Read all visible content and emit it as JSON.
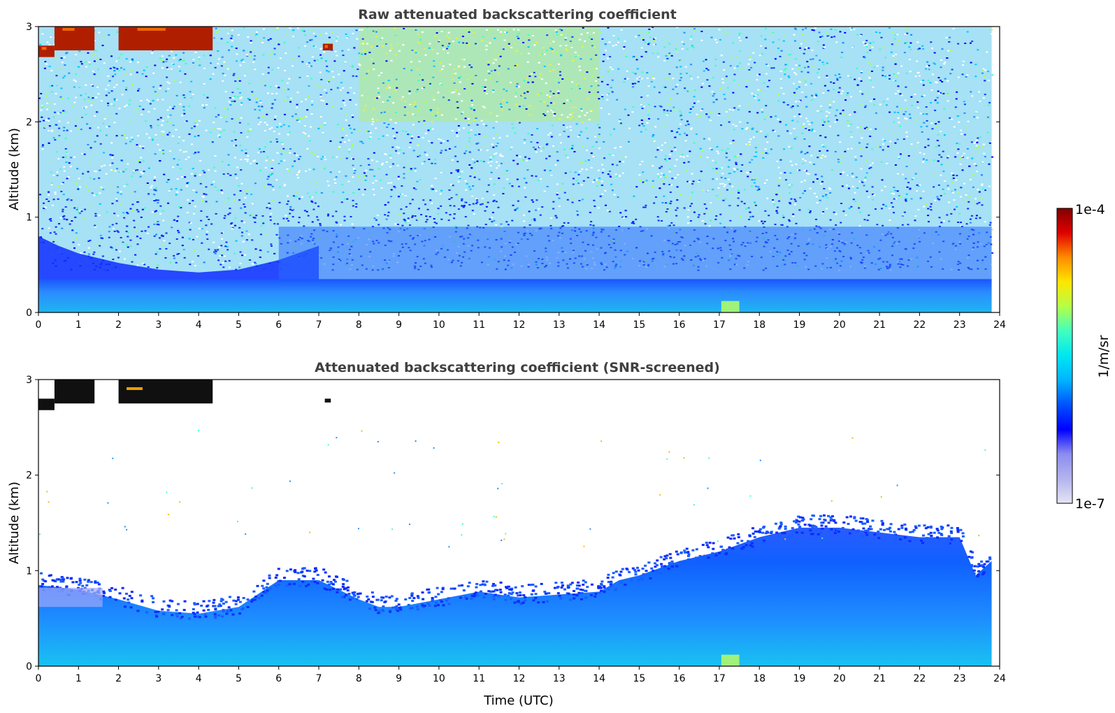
{
  "chart_data": [
    {
      "type": "heatmap",
      "title": "Raw attenuated backscattering coefficient",
      "xlabel": "",
      "ylabel": "Altitude (km)",
      "xlim": [
        0,
        24
      ],
      "ylim": [
        0,
        3
      ],
      "xticks": [
        "0",
        "1",
        "2",
        "3",
        "4",
        "5",
        "6",
        "7",
        "8",
        "9",
        "10",
        "11",
        "12",
        "13",
        "14",
        "15",
        "16",
        "17",
        "18",
        "19",
        "20",
        "21",
        "22",
        "23",
        "24"
      ],
      "yticks": [
        "0",
        "1",
        "2",
        "3"
      ],
      "data_end_time": 23.8,
      "layers": [
        {
          "name": "surface-layer",
          "x": [
            0,
            23.8
          ],
          "y": [
            0,
            0.35
          ],
          "level": "cyan-blue"
        },
        {
          "name": "boundary-layer-morning",
          "x": [
            0,
            6
          ],
          "y": [
            0.35,
            0.8
          ],
          "level": "dark-blue"
        },
        {
          "name": "noisy-upper-region",
          "x": [
            0,
            23.8
          ],
          "y": [
            0.8,
            3.0
          ],
          "level": "noisy-green-blue"
        },
        {
          "name": "noise-maximum",
          "x": [
            8,
            14
          ],
          "y": [
            2.0,
            3.0
          ],
          "level": "yellow-green"
        }
      ],
      "cloud_cells": [
        {
          "x": [
            0.0,
            0.4
          ],
          "y": [
            2.68,
            2.8
          ]
        },
        {
          "x": [
            0.4,
            1.4
          ],
          "y": [
            2.75,
            3.0
          ]
        },
        {
          "x": [
            2.0,
            4.35
          ],
          "y": [
            2.75,
            3.0
          ]
        },
        {
          "x": [
            7.1,
            7.35
          ],
          "y": [
            2.75,
            2.82
          ]
        }
      ]
    },
    {
      "type": "heatmap",
      "title": "Attenuated backscattering coefficient (SNR-screened)",
      "xlabel": "Time (UTC)",
      "ylabel": "Altitude (km)",
      "xlim": [
        0,
        24
      ],
      "ylim": [
        0,
        3
      ],
      "xticks": [
        "0",
        "1",
        "2",
        "3",
        "4",
        "5",
        "6",
        "7",
        "8",
        "9",
        "10",
        "11",
        "12",
        "13",
        "14",
        "15",
        "16",
        "17",
        "18",
        "19",
        "20",
        "21",
        "22",
        "23",
        "24"
      ],
      "yticks": [
        "0",
        "1",
        "2",
        "3"
      ],
      "data_end_time": 23.8,
      "boundary_layer_top": {
        "time": [
          0,
          1,
          2,
          3,
          4,
          5,
          6,
          7,
          7.5,
          8,
          8.5,
          9,
          10,
          11,
          12,
          13,
          14,
          14.5,
          15,
          16,
          17,
          18,
          19,
          20,
          21,
          22,
          23,
          23.4,
          23.8
        ],
        "height": [
          0.85,
          0.8,
          0.7,
          0.58,
          0.55,
          0.62,
          0.9,
          0.9,
          0.8,
          0.7,
          0.62,
          0.62,
          0.7,
          0.78,
          0.72,
          0.75,
          0.78,
          0.9,
          0.95,
          1.1,
          1.2,
          1.35,
          1.45,
          1.45,
          1.4,
          1.35,
          1.35,
          0.95,
          1.1
        ]
      },
      "cloud_cells": [
        {
          "x": [
            0.0,
            0.4
          ],
          "y": [
            2.68,
            2.8
          ]
        },
        {
          "x": [
            0.4,
            1.4
          ],
          "y": [
            2.75,
            3.0
          ]
        },
        {
          "x": [
            2.0,
            4.35
          ],
          "y": [
            2.75,
            3.0
          ]
        },
        {
          "x": [
            7.15,
            7.3
          ],
          "y": [
            2.76,
            2.8
          ]
        }
      ]
    }
  ],
  "colorbar": {
    "label": "1/m/sr",
    "max_label": "1e-4",
    "min_label": "1e-7",
    "colors": [
      "#e4e4f4",
      "#b4b4ee",
      "#8c8cf0",
      "#0000ff",
      "#0050ff",
      "#00b4ff",
      "#00e6f0",
      "#40ffc0",
      "#b4ff48",
      "#ffe600",
      "#ff8c00",
      "#e00000",
      "#800000"
    ]
  }
}
